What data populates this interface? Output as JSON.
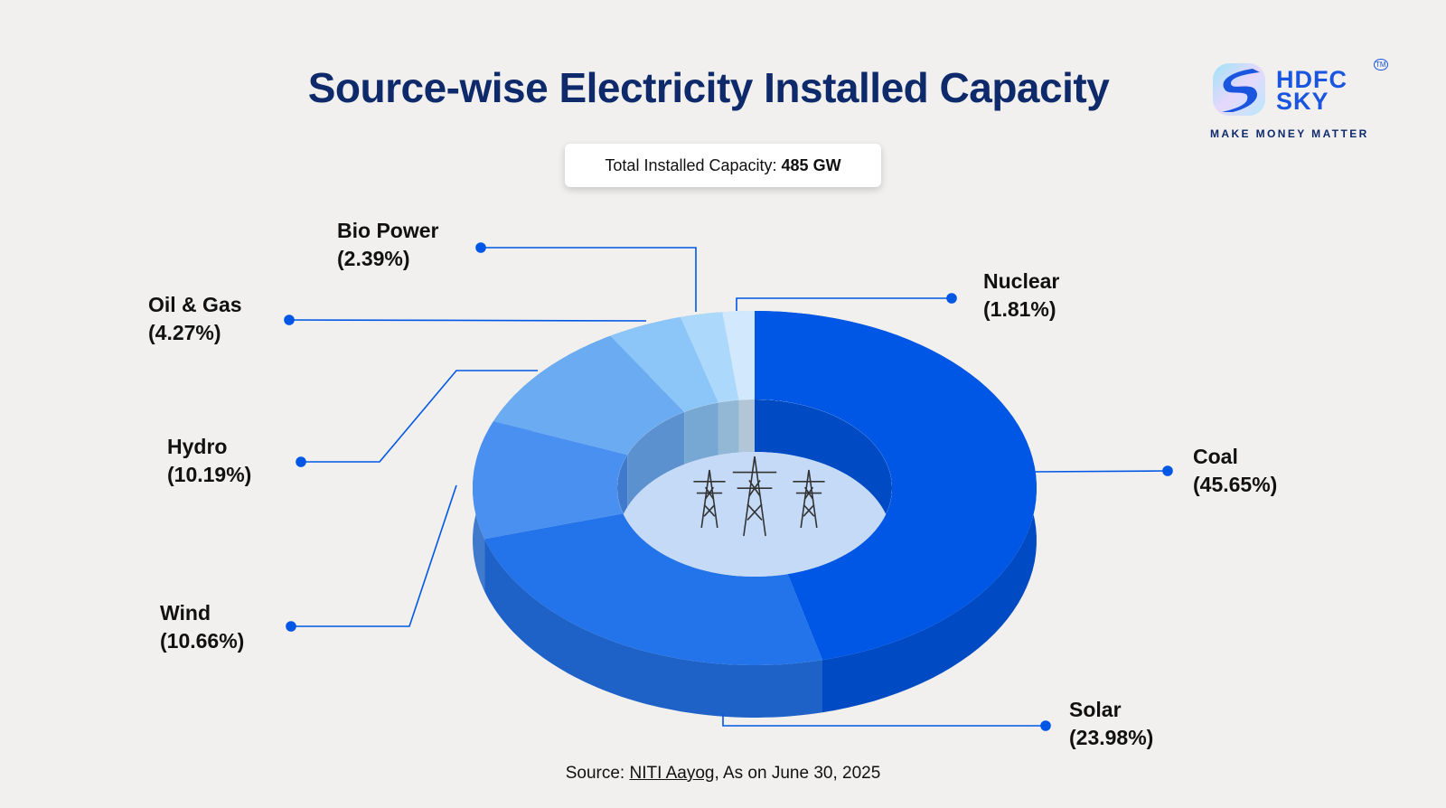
{
  "title": "Source-wise Electricity Installed Capacity",
  "total": {
    "label": "Total Installed Capacity:",
    "value": "485 GW"
  },
  "logo": {
    "name": "HDFC SKY",
    "tagline": "MAKE MONEY MATTER",
    "tm": "TM"
  },
  "source": {
    "prefix": "Source:",
    "link": "NITI Aayog",
    "suffix": ", As on June 30, 2025"
  },
  "chart_data": {
    "type": "pie",
    "variant": "3d-donut",
    "title": "Source-wise Electricity Installed Capacity",
    "unit": "%",
    "categories": [
      "Coal",
      "Solar",
      "Wind",
      "Hydro",
      "Oil & Gas",
      "Bio Power",
      "Nuclear"
    ],
    "values": [
      45.65,
      23.98,
      10.66,
      10.19,
      4.27,
      2.39,
      1.81
    ],
    "value_labels": [
      "(45.65%)",
      "(23.98%)",
      "(10.66%)",
      "(10.19%)",
      "(4.27%)",
      "(2.39%)",
      "(1.81%)"
    ],
    "colors": [
      "#0057e6",
      "#2373ea",
      "#4a90f0",
      "#6aabf2",
      "#8cc6f8",
      "#acd9fb",
      "#d2e9fd"
    ],
    "start": "top",
    "direction": "clockwise",
    "legend": "none"
  }
}
